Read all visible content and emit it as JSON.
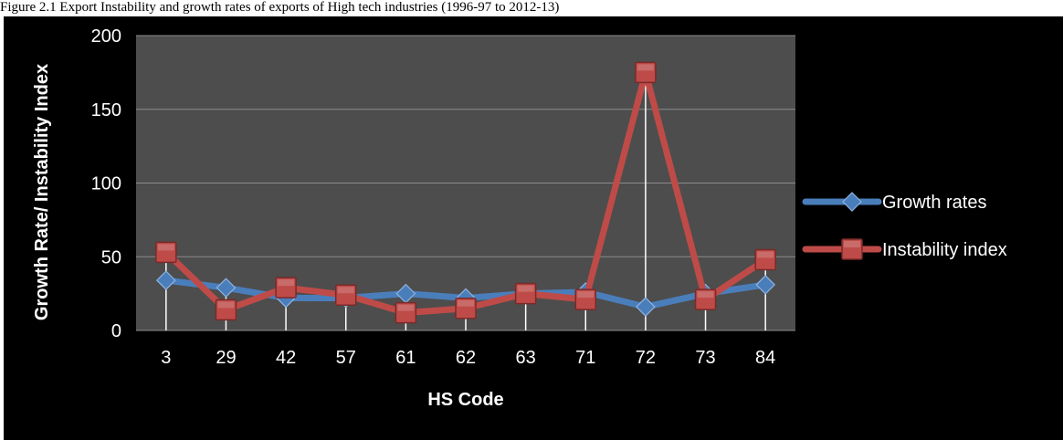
{
  "caption": "Figure 2.1 Export Instability and growth rates of exports of High tech industries (1996-97 to 2012-13)",
  "colors": {
    "background": "#000000",
    "plot_area": "#4d4d4d",
    "gridline": "#8c8c8c",
    "growth": "#4a7ebb",
    "instability": "#be4b48"
  },
  "chart_data": {
    "type": "line",
    "title": "",
    "xlabel": "HS Code",
    "ylabel": "Growth Rate/ Instability Index",
    "categories": [
      "3",
      "29",
      "42",
      "57",
      "61",
      "62",
      "63",
      "71",
      "72",
      "73",
      "84"
    ],
    "ylim": [
      0,
      200
    ],
    "yticks": [
      0,
      50,
      100,
      150,
      200
    ],
    "grid": true,
    "legend_position": "right",
    "series": [
      {
        "name": "Growth rates",
        "marker": "diamond",
        "color": "#4a7ebb",
        "values": [
          34,
          29,
          22,
          22,
          25,
          22,
          25,
          26,
          16,
          25,
          31
        ]
      },
      {
        "name": "Instability index",
        "marker": "square",
        "color": "#be4b48",
        "values": [
          53,
          14,
          29,
          24,
          12,
          15,
          25,
          21,
          175,
          21,
          48
        ]
      }
    ]
  }
}
